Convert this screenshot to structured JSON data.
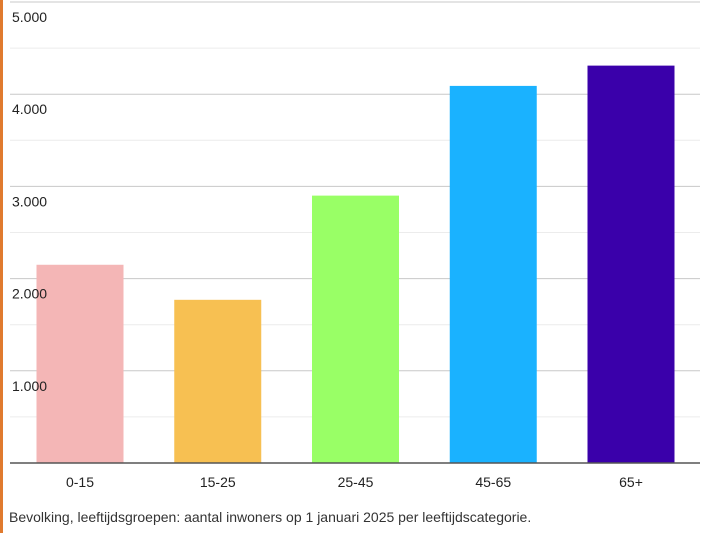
{
  "chart_data": {
    "type": "bar",
    "title": "",
    "xlabel": "",
    "ylabel": "",
    "categories": [
      "0-15",
      "15-25",
      "25-45",
      "45-65",
      "65+"
    ],
    "values": [
      2150,
      1770,
      2900,
      4090,
      4310
    ],
    "colors": [
      "#f4b6b6",
      "#f7c052",
      "#99ff66",
      "#1ab2ff",
      "#3a00aa"
    ],
    "ylim": [
      0,
      5000
    ],
    "y_ticks": [
      0,
      1000,
      2000,
      3000,
      4000,
      5000
    ],
    "y_tick_labels": [
      "",
      "1.000",
      "2.000",
      "3.000",
      "4.000",
      "5.000"
    ],
    "grid": true,
    "legend": "none"
  },
  "caption": "Bevolking, leeftijdsgroepen: aantal inwoners op 1 januari 2025 per leeftijdscategorie."
}
